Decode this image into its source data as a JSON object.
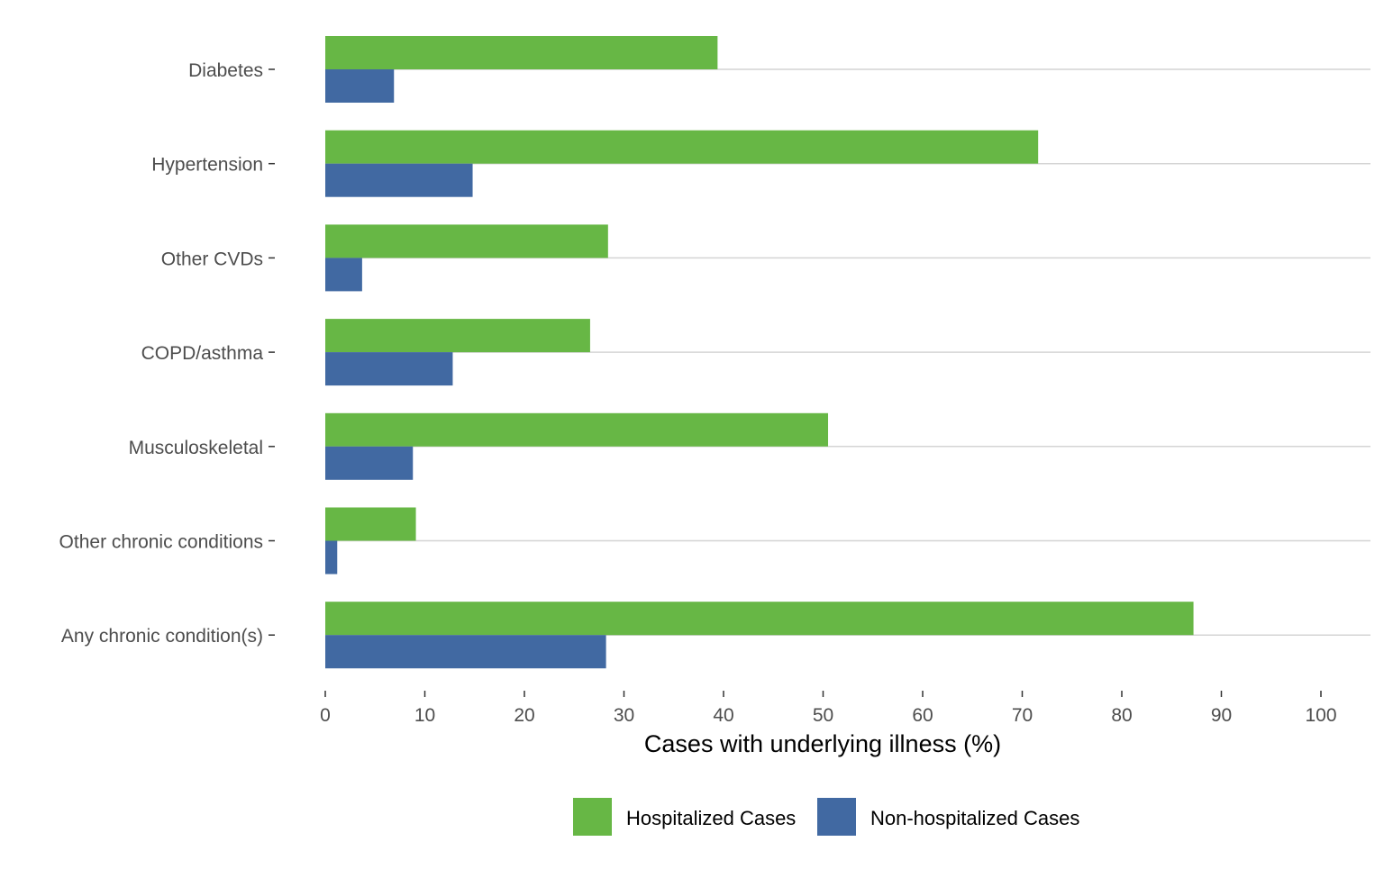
{
  "chart_data": {
    "type": "bar",
    "orientation": "horizontal",
    "categories": [
      "Diabetes",
      "Hypertension",
      "Other CVDs",
      "COPD/asthma",
      "Musculoskeletal",
      "Other chronic conditions",
      "Any chronic condition(s)"
    ],
    "series": [
      {
        "name": "Hospitalized Cases",
        "color": "#67b745",
        "values": [
          39.4,
          71.6,
          28.4,
          26.6,
          50.5,
          9.1,
          87.2
        ]
      },
      {
        "name": "Non-hospitalized Cases",
        "color": "#4169a2",
        "values": [
          6.9,
          14.8,
          3.7,
          12.8,
          8.8,
          1.2,
          28.2
        ]
      }
    ],
    "xlabel": "Cases with underlying illness (%)",
    "ylabel": "",
    "xlim": [
      0,
      100
    ],
    "x_ticks": [
      "0",
      "10",
      "20",
      "30",
      "40",
      "50",
      "60",
      "70",
      "80",
      "90",
      "100"
    ],
    "grid": true,
    "legend_position": "bottom"
  }
}
